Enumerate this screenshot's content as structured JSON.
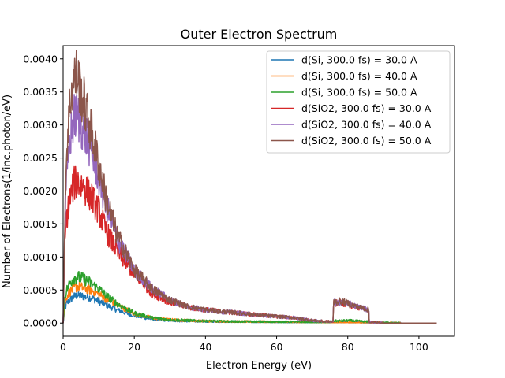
{
  "chart_data": {
    "type": "line",
    "title": "Outer Electron Spectrum",
    "xlabel": "Electron Energy (eV)",
    "ylabel": "Number of Electrons(1/inc.photon/eV)",
    "xlim": [
      0,
      110
    ],
    "ylim": [
      -0.0002,
      0.0042
    ],
    "xticks": [
      0,
      20,
      40,
      60,
      80,
      100
    ],
    "xtick_labels": [
      "0",
      "20",
      "40",
      "60",
      "80",
      "100"
    ],
    "yticks": [
      0.0,
      0.0005,
      0.001,
      0.0015,
      0.002,
      0.0025,
      0.003,
      0.0035,
      0.004
    ],
    "ytick_labels": [
      "0.0000",
      "0.0005",
      "0.0010",
      "0.0015",
      "0.0020",
      "0.0025",
      "0.0030",
      "0.0035",
      "0.0040"
    ],
    "grid": false,
    "legend_position": "top-right",
    "series": [
      {
        "name": "d(Si, 300.0 fs) = 30.0 A",
        "color": "#1f77b4",
        "x": [
          0,
          0.5,
          1,
          2,
          3,
          4,
          6,
          8,
          10,
          12,
          15,
          20,
          25,
          30,
          35,
          40,
          45,
          50,
          55,
          60,
          65,
          70,
          75,
          80,
          85,
          90,
          95,
          100,
          105
        ],
        "y": [
          0,
          0.0002,
          0.0003,
          0.00035,
          0.0004,
          0.00042,
          0.0004,
          0.00038,
          0.00033,
          0.00028,
          0.0002,
          0.00011,
          6e-05,
          4e-05,
          3e-05,
          2.5e-05,
          2e-05,
          2e-05,
          1.5e-05,
          1.5e-05,
          1e-05,
          1e-05,
          1e-05,
          1e-05,
          5e-06,
          2e-06,
          0,
          0,
          0
        ]
      },
      {
        "name": "d(Si, 300.0 fs) = 40.0 A",
        "color": "#ff7f0e",
        "x": [
          0,
          0.5,
          1,
          2,
          3,
          4,
          6,
          8,
          10,
          12,
          15,
          20,
          25,
          30,
          35,
          40,
          45,
          50,
          55,
          60,
          65,
          70,
          75,
          80,
          85,
          90,
          95,
          100,
          105
        ],
        "y": [
          0,
          0.0003,
          0.0004,
          0.00048,
          0.00053,
          0.00055,
          0.00053,
          0.0005,
          0.00044,
          0.00037,
          0.00028,
          0.00014,
          8e-05,
          5e-05,
          4e-05,
          3e-05,
          2.5e-05,
          2e-05,
          2e-05,
          1.5e-05,
          1.5e-05,
          1e-05,
          1e-05,
          1e-05,
          5e-06,
          2e-06,
          0,
          0,
          0
        ]
      },
      {
        "name": "d(Si, 300.0 fs) = 50.0 A",
        "color": "#2ca02c",
        "x": [
          0,
          0.5,
          1,
          2,
          3,
          4,
          6,
          8,
          10,
          12,
          15,
          20,
          25,
          30,
          35,
          40,
          45,
          50,
          55,
          60,
          65,
          70,
          75,
          76,
          80,
          85,
          90,
          95,
          100,
          105
        ],
        "y": [
          0,
          0.0004,
          0.0005,
          0.00062,
          0.00068,
          0.0007,
          0.00066,
          0.0006,
          0.00052,
          0.00042,
          0.0003,
          0.00015,
          8e-05,
          5e-05,
          4e-05,
          3e-05,
          2.5e-05,
          2e-05,
          2e-05,
          1.5e-05,
          1.5e-05,
          1e-05,
          1e-05,
          3e-05,
          4e-05,
          2e-05,
          5e-06,
          0,
          0,
          0
        ]
      },
      {
        "name": "d(SiO2, 300.0 fs) = 30.0 A",
        "color": "#d62728",
        "x": [
          0,
          0.5,
          1,
          2,
          3,
          4,
          5,
          6,
          8,
          10,
          12,
          15,
          20,
          25,
          30,
          35,
          40,
          45,
          50,
          55,
          60,
          65,
          70,
          75,
          75.9,
          76,
          78,
          80,
          82,
          84,
          85.9,
          86,
          90,
          95,
          100,
          105
        ],
        "y": [
          0,
          0.0012,
          0.0016,
          0.0019,
          0.0021,
          0.00215,
          0.0021,
          0.00205,
          0.0019,
          0.0017,
          0.0014,
          0.0011,
          0.00075,
          0.00045,
          0.00032,
          0.00024,
          0.0002,
          0.00017,
          0.00015,
          0.00012,
          0.0001,
          8e-05,
          4e-05,
          2e-05,
          2e-05,
          0.0003,
          0.00031,
          0.00028,
          0.00025,
          0.00022,
          0.0002,
          1e-05,
          0,
          0,
          0,
          0
        ]
      },
      {
        "name": "d(SiO2, 300.0 fs) = 40.0 A",
        "color": "#9467bd",
        "x": [
          0,
          0.5,
          1,
          2,
          3,
          4,
          5,
          6,
          8,
          10,
          12,
          15,
          20,
          25,
          30,
          35,
          40,
          45,
          50,
          55,
          60,
          65,
          70,
          75,
          75.9,
          76,
          78,
          80,
          82,
          84,
          85.9,
          86,
          90,
          95,
          100,
          105
        ],
        "y": [
          0,
          0.0015,
          0.0022,
          0.0028,
          0.0031,
          0.00315,
          0.003,
          0.0029,
          0.0026,
          0.0022,
          0.0018,
          0.0013,
          0.0008,
          0.00052,
          0.00035,
          0.00025,
          0.0002,
          0.00017,
          0.00015,
          0.00012,
          0.0001,
          8e-05,
          4e-05,
          2e-05,
          2e-05,
          0.00031,
          0.00032,
          0.0003,
          0.00026,
          0.00023,
          0.0002,
          1e-05,
          0,
          0,
          0,
          0
        ]
      },
      {
        "name": "d(SiO2, 300.0 fs) = 50.0 A",
        "color": "#8c564b",
        "x": [
          0,
          0.5,
          1,
          2,
          3,
          4,
          5,
          6,
          8,
          10,
          12,
          15,
          20,
          25,
          30,
          35,
          40,
          45,
          50,
          55,
          60,
          65,
          70,
          75,
          75.9,
          76,
          78,
          80,
          82,
          84,
          85.9,
          86,
          90,
          95,
          100,
          105
        ],
        "y": [
          0,
          0.0017,
          0.0026,
          0.0034,
          0.0037,
          0.00375,
          0.0035,
          0.0033,
          0.0029,
          0.0024,
          0.0019,
          0.00135,
          0.0008,
          0.00052,
          0.00035,
          0.00025,
          0.0002,
          0.00017,
          0.00015,
          0.00012,
          0.0001,
          8e-05,
          4e-05,
          2e-05,
          2e-05,
          0.00032,
          0.00033,
          0.0003,
          0.00026,
          0.00023,
          0.0002,
          1e-05,
          0,
          0,
          0,
          0
        ]
      }
    ]
  }
}
